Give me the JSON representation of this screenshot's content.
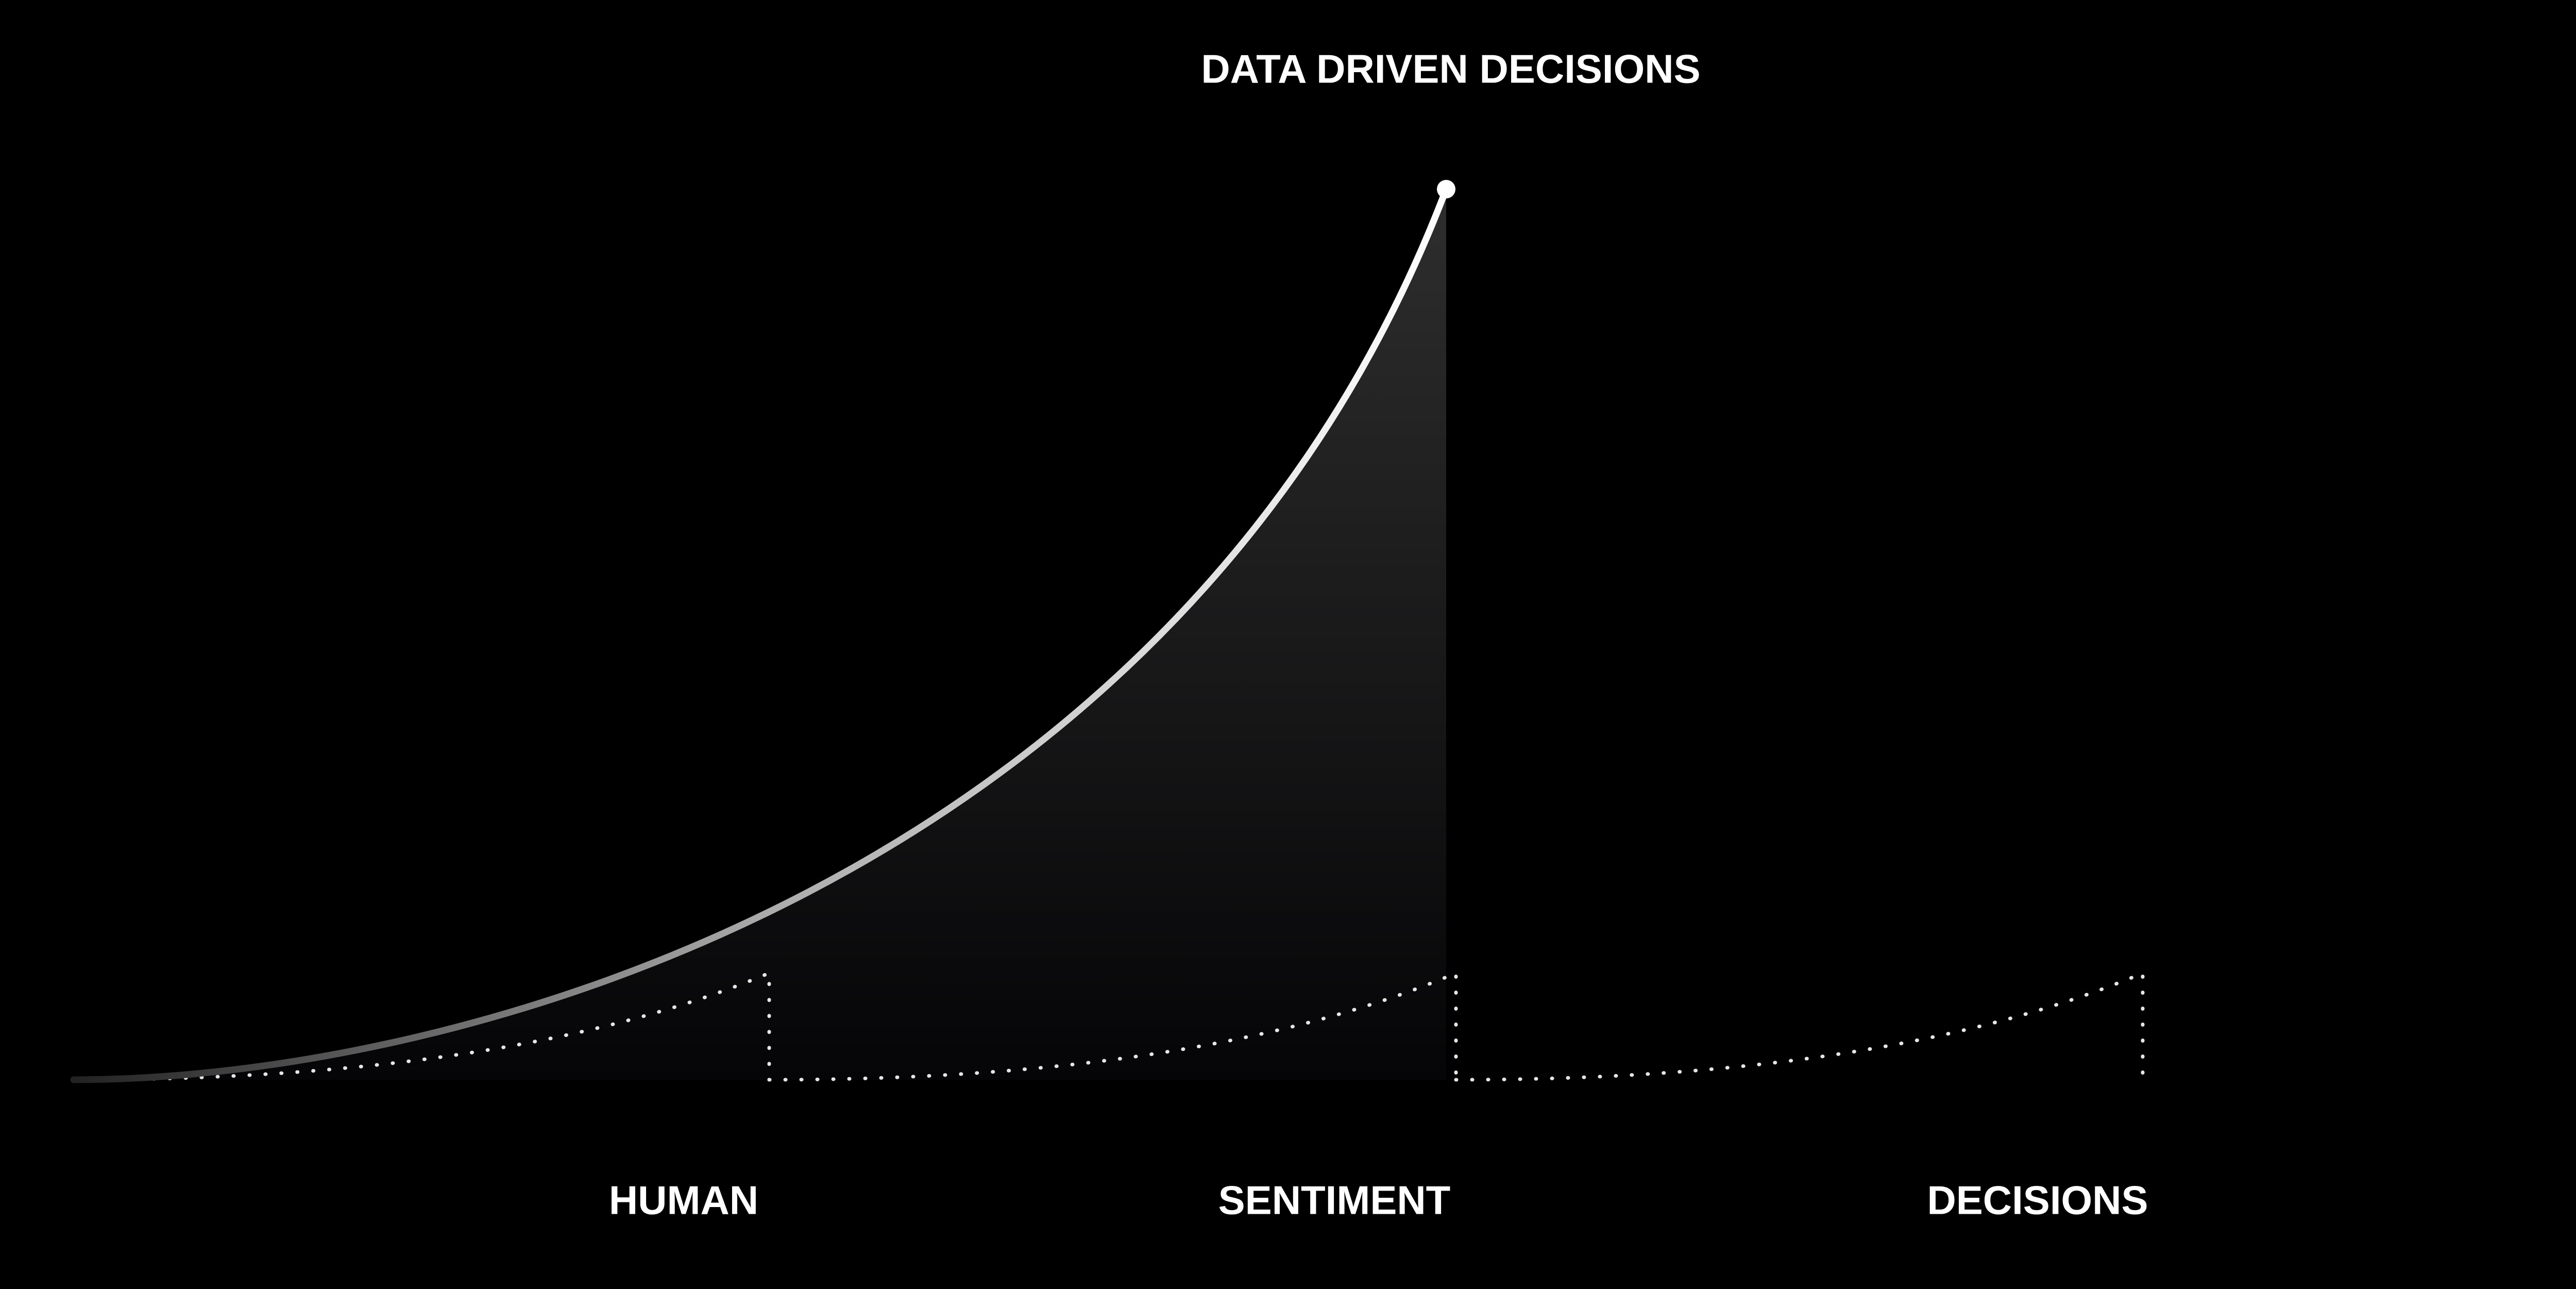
{
  "header": {
    "title": "DATA DRIVEN DECISIONS"
  },
  "stages": [
    {
      "label": "HUMAN"
    },
    {
      "label": "SENTIMENT"
    },
    {
      "label": "DECISIONS"
    }
  ]
}
